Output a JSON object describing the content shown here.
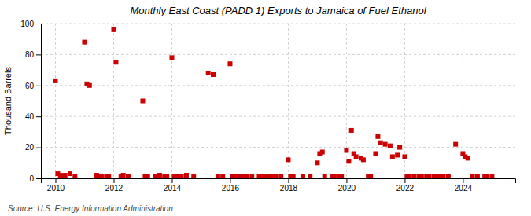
{
  "chart_data": {
    "type": "scatter",
    "title": "Monthly East Coast (PADD 1) Exports to Jamaica of Fuel Ethanol",
    "ylabel": "Thousand Barrels",
    "annotations": [
      "Source: U.S. Energy Information Administration"
    ],
    "color": "#cc0000",
    "marker": "square",
    "grid": true,
    "xlim": [
      2009.5,
      2025.8
    ],
    "xticks": [
      2010,
      2012,
      2014,
      2016,
      2018,
      2020,
      2022,
      2024
    ],
    "ylim": [
      0,
      100
    ],
    "yticks": [
      0,
      20,
      40,
      60,
      80,
      100
    ],
    "x": [
      2010.0,
      2010.08,
      2010.17,
      2010.25,
      2010.33,
      2010.5,
      2010.67,
      2011.0,
      2011.08,
      2011.17,
      2011.42,
      2011.58,
      2011.75,
      2011.83,
      2012.0,
      2012.08,
      2012.25,
      2012.33,
      2012.5,
      2013.0,
      2013.08,
      2013.17,
      2013.42,
      2013.58,
      2013.75,
      2013.83,
      2014.0,
      2014.08,
      2014.17,
      2014.25,
      2014.33,
      2014.5,
      2014.75,
      2015.25,
      2015.42,
      2015.58,
      2015.75,
      2016.0,
      2016.08,
      2016.17,
      2016.25,
      2016.33,
      2016.5,
      2016.58,
      2016.75,
      2017.0,
      2017.08,
      2017.17,
      2017.25,
      2017.33,
      2017.5,
      2017.58,
      2017.75,
      2018.0,
      2018.08,
      2018.17,
      2018.5,
      2018.75,
      2019.0,
      2019.08,
      2019.17,
      2019.25,
      2019.5,
      2019.58,
      2019.75,
      2019.83,
      2020.0,
      2020.08,
      2020.17,
      2020.25,
      2020.33,
      2020.5,
      2020.58,
      2020.75,
      2020.83,
      2021.0,
      2021.08,
      2021.17,
      2021.33,
      2021.5,
      2021.58,
      2021.75,
      2021.83,
      2022.0,
      2022.08,
      2022.17,
      2022.33,
      2022.5,
      2022.58,
      2022.75,
      2022.83,
      2023.0,
      2023.08,
      2023.17,
      2023.33,
      2023.5,
      2023.75,
      2024.0,
      2024.08,
      2024.17,
      2024.33,
      2024.5,
      2024.75,
      2024.83,
      2025.0
    ],
    "values": [
      63,
      3,
      2,
      1,
      2,
      3,
      1,
      88,
      61,
      60,
      2,
      1,
      1,
      1,
      96,
      75,
      1,
      2,
      1,
      50,
      1,
      1,
      1,
      2,
      1,
      1,
      78,
      1,
      1,
      1,
      1,
      2,
      1,
      68,
      67,
      1,
      1,
      74,
      1,
      1,
      1,
      1,
      1,
      1,
      1,
      1,
      1,
      1,
      1,
      1,
      1,
      1,
      1,
      12,
      1,
      1,
      1,
      1,
      10,
      16,
      17,
      1,
      1,
      1,
      1,
      1,
      18,
      11,
      31,
      16,
      14,
      13,
      12,
      1,
      1,
      16,
      27,
      23,
      22,
      21,
      14,
      15,
      20,
      14,
      1,
      1,
      1,
      1,
      1,
      1,
      1,
      1,
      1,
      1,
      1,
      1,
      22,
      16,
      14,
      13,
      1,
      1,
      1,
      1,
      1
    ]
  }
}
